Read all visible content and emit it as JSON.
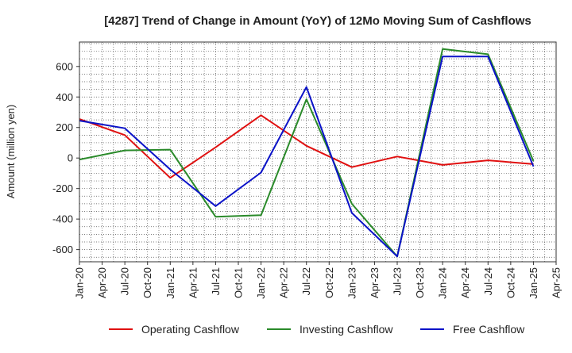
{
  "chart_data": {
    "type": "line",
    "title": "[4287]  Trend of Change in Amount (YoY) of 12Mo Moving Sum of Cashflows",
    "ylabel": "Amount (million yen)",
    "xlabel": "",
    "ylim": [
      -680,
      760
    ],
    "yticks": [
      600,
      400,
      200,
      0,
      -200,
      -400,
      -600
    ],
    "ytick_labels": [
      "600",
      "400",
      "200",
      "0",
      "-200",
      "-400",
      "-600"
    ],
    "categories": [
      "Jan-20",
      "Apr-20",
      "Jul-20",
      "Oct-20",
      "Jan-21",
      "Apr-21",
      "Jul-21",
      "Oct-21",
      "Jan-22",
      "Apr-22",
      "Jul-22",
      "Oct-22",
      "Jan-23",
      "Apr-23",
      "Jul-23",
      "Oct-23",
      "Jan-24",
      "Apr-24",
      "Jul-24",
      "Oct-24",
      "Jan-25",
      "Apr-25"
    ],
    "grid": true,
    "legend_position": "bottom",
    "series": [
      {
        "name": "Operating Cashflow",
        "color": "#e01010",
        "x": [
          "Jan-20",
          "Jul-20",
          "Jan-21",
          "Jul-21",
          "Jan-22",
          "Jul-22",
          "Jan-23",
          "Jul-23",
          "Jan-24",
          "Jul-24",
          "Jan-25"
        ],
        "values": [
          255,
          150,
          -130,
          70,
          280,
          80,
          -60,
          10,
          -45,
          -15,
          -40
        ]
      },
      {
        "name": "Investing Cashflow",
        "color": "#2a8a2a",
        "x": [
          "Jan-20",
          "Jul-20",
          "Jan-21",
          "Jul-21",
          "Jan-22",
          "Jul-22",
          "Jan-23",
          "Jul-23",
          "Jan-24",
          "Jul-24",
          "Jan-25"
        ],
        "values": [
          -10,
          50,
          55,
          -385,
          -375,
          385,
          -300,
          -645,
          715,
          680,
          -20
        ]
      },
      {
        "name": "Free Cashflow",
        "color": "#0a12c8",
        "x": [
          "Jan-20",
          "Jul-20",
          "Jan-21",
          "Jul-21",
          "Jan-22",
          "Jul-22",
          "Jan-23",
          "Jul-23",
          "Jan-24",
          "Jul-24",
          "Jan-25"
        ],
        "values": [
          245,
          195,
          -75,
          -315,
          -95,
          465,
          -360,
          -645,
          665,
          665,
          -55
        ]
      }
    ]
  }
}
